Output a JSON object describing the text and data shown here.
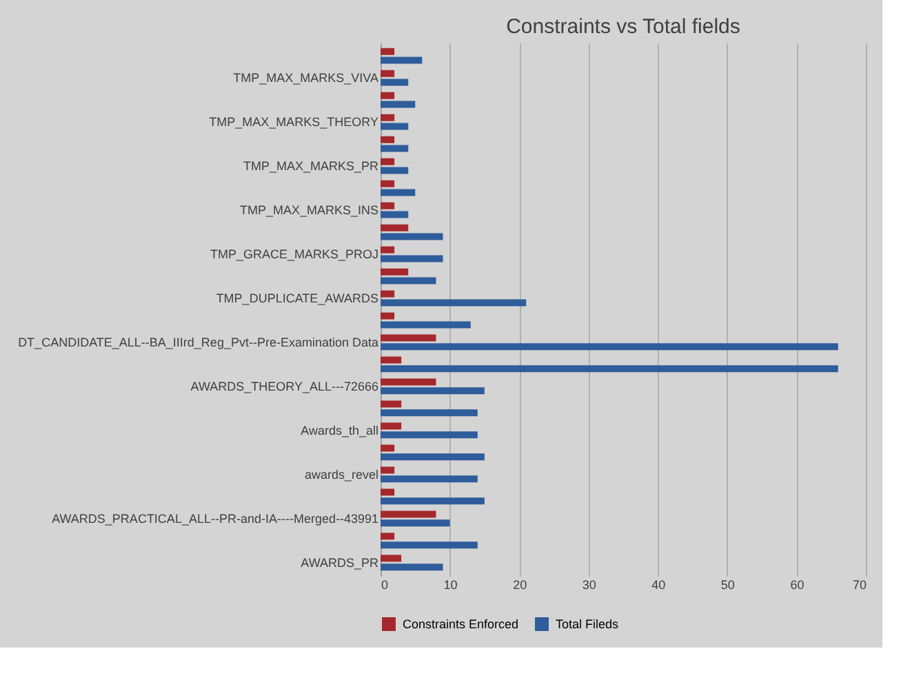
{
  "chart_data": {
    "type": "bar",
    "orientation": "horizontal",
    "title": "Constraints vs Total fields",
    "categories": [
      null,
      "TMP_MAX_MARKS_VIVA",
      null,
      "TMP_MAX_MARKS_THEORY",
      null,
      "TMP_MAX_MARKS_PR",
      null,
      "TMP_MAX_MARKS_INS",
      null,
      "TMP_GRACE_MARKS_PROJ",
      null,
      "TMP_DUPLICATE_AWARDS",
      null,
      "DT_CANDIDATE_ALL--BA_IIIrd_Reg_Pvt--Pre-Examination Data",
      null,
      "AWARDS_THEORY_ALL---72666",
      null,
      "Awards_th_all",
      null,
      "awards_revel",
      null,
      "AWARDS_PRACTICAL_ALL--PR-and-IA----Merged--43991",
      null,
      "AWARDS_PR"
    ],
    "series": [
      {
        "name": "Constraints Enforced",
        "color": "#a5282c",
        "values": [
          2,
          2,
          2,
          2,
          2,
          2,
          2,
          2,
          4,
          2,
          4,
          2,
          2,
          8,
          3,
          8,
          3,
          3,
          2,
          2,
          2,
          8,
          2,
          3
        ]
      },
      {
        "name": "Total Fileds",
        "color": "#2f5d9b",
        "values": [
          6,
          4,
          5,
          4,
          4,
          4,
          5,
          4,
          9,
          9,
          8,
          21,
          13,
          66,
          66,
          15,
          14,
          14,
          15,
          14,
          15,
          10,
          14,
          9
        ]
      }
    ],
    "xlim": [
      0,
      70
    ],
    "xticks": [
      0,
      10,
      20,
      30,
      40,
      50,
      60,
      70
    ],
    "grid": "x",
    "legend": "bottom"
  }
}
